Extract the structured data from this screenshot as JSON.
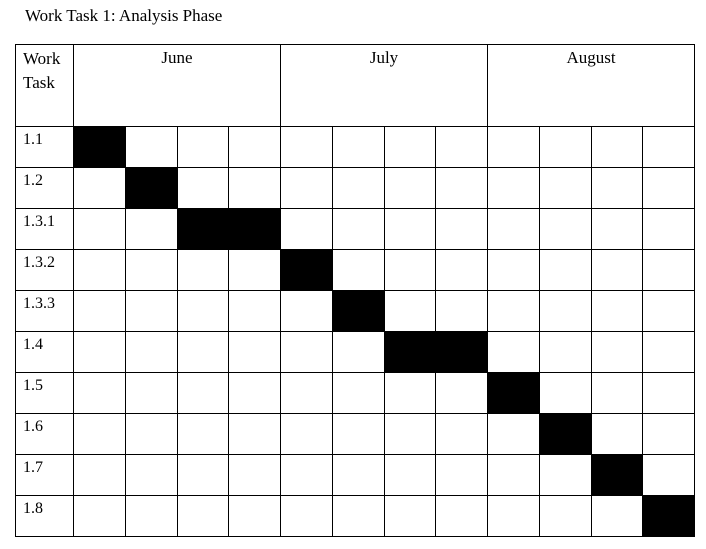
{
  "title": "Work Task 1: Analysis Phase",
  "table": {
    "task_header_line1": "Work",
    "task_header_line2": "Task",
    "months": [
      "June",
      "July",
      "August"
    ],
    "weeks_per_month": 4,
    "fill_color": "#000000",
    "tasks": [
      {
        "id": "1.1",
        "active_weeks": [
          1
        ]
      },
      {
        "id": "1.2",
        "active_weeks": [
          2
        ]
      },
      {
        "id": "1.3.1",
        "active_weeks": [
          3,
          4
        ]
      },
      {
        "id": "1.3.2",
        "active_weeks": [
          5
        ]
      },
      {
        "id": "1.3.3",
        "active_weeks": [
          6
        ]
      },
      {
        "id": "1.4",
        "active_weeks": [
          7,
          8
        ]
      },
      {
        "id": "1.5",
        "active_weeks": [
          9
        ]
      },
      {
        "id": "1.6",
        "active_weeks": [
          10
        ]
      },
      {
        "id": "1.7",
        "active_weeks": [
          11
        ]
      },
      {
        "id": "1.8",
        "active_weeks": [
          12
        ]
      }
    ]
  }
}
